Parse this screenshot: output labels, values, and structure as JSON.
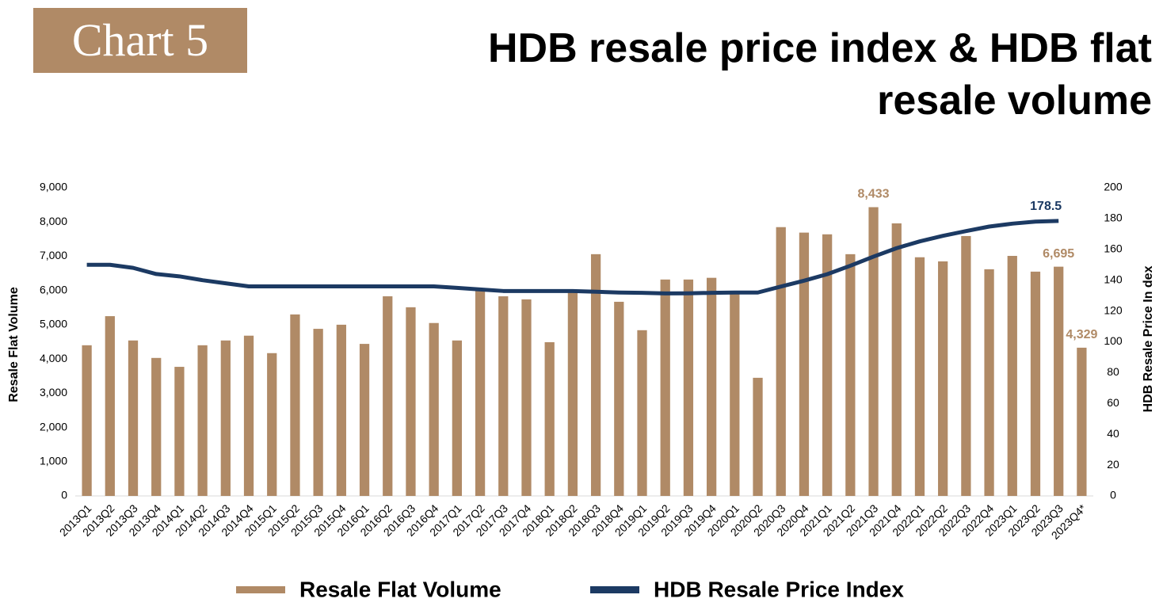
{
  "chart_data": {
    "type": "bar_line",
    "badge": "Chart 5",
    "title": "HDB resale price index & HDB flat resale volume",
    "y_label": "Resale Flat Volume",
    "y2_label": "HDB Resale Price In dex",
    "categories": [
      "2013Q1",
      "2013Q2",
      "2013Q3",
      "2013Q4",
      "2014Q1",
      "2014Q2",
      "2014Q3",
      "2014Q4",
      "2015Q1",
      "2015Q2",
      "2015Q3",
      "2015Q4",
      "2016Q1",
      "2016Q2",
      "2016Q3",
      "2016Q4",
      "2017Q1",
      "2017Q2",
      "2017Q3",
      "2017Q4",
      "2018Q1",
      "2018Q2",
      "2018Q3",
      "2018Q4",
      "2019Q1",
      "2019Q2",
      "2019Q3",
      "2019Q4",
      "2020Q1",
      "2020Q2",
      "2020Q3",
      "2020Q4",
      "2021Q1",
      "2021Q2",
      "2021Q3",
      "2021Q4",
      "2022Q1",
      "2022Q2",
      "2022Q3",
      "2022Q4",
      "2023Q1",
      "2023Q2",
      "2023Q3",
      "2023Q4*"
    ],
    "series": [
      {
        "name": "Resale Flat Volume",
        "type": "bar",
        "color": "#b08a66",
        "values": [
          4400,
          5250,
          4540,
          4030,
          3770,
          4400,
          4540,
          4680,
          4170,
          5300,
          4880,
          5000,
          4440,
          5830,
          5510,
          5050,
          4540,
          6020,
          5830,
          5740,
          4490,
          5950,
          7060,
          5670,
          4840,
          6320,
          6320,
          6370,
          5930,
          3450,
          7850,
          7690,
          7640,
          7060,
          8433,
          7960,
          6970,
          6850,
          7590,
          6620,
          7010,
          6550,
          6695,
          4329
        ],
        "value_labels": [
          null,
          null,
          null,
          null,
          null,
          null,
          null,
          null,
          null,
          null,
          null,
          null,
          null,
          null,
          null,
          null,
          null,
          null,
          null,
          null,
          null,
          null,
          null,
          null,
          null,
          null,
          null,
          null,
          null,
          null,
          null,
          null,
          null,
          null,
          "8,433",
          null,
          null,
          null,
          null,
          null,
          null,
          null,
          "6,695",
          "4,329"
        ]
      },
      {
        "name": "HDB Resale Price Index",
        "type": "line",
        "axis": "y2",
        "color": "#1c3a63",
        "values": [
          150,
          150,
          148,
          144,
          142.5,
          140,
          138,
          136,
          136,
          136,
          136,
          136,
          136,
          136,
          136,
          136,
          135,
          134,
          133,
          133,
          133,
          133,
          132.5,
          132,
          131.8,
          131.4,
          131.5,
          131.8,
          132,
          132,
          135.9,
          139.7,
          143.9,
          149.4,
          155.3,
          160.8,
          165.2,
          168.8,
          171.9,
          174.8,
          176.7,
          178,
          178.5,
          null
        ],
        "label_index": 42
      }
    ],
    "ylim": [
      0,
      9000
    ],
    "yticks": [
      0,
      {
        "value": 1000,
        "label": "1,000"
      },
      {
        "value": 2000,
        "label": "2,000"
      },
      {
        "value": 3000,
        "label": "3,000"
      },
      {
        "value": 4000,
        "label": "4,000"
      },
      {
        "value": 5000,
        "label": "5,000"
      },
      {
        "value": 6000,
        "label": "6,000"
      },
      {
        "value": 7000,
        "label": "7,000"
      },
      {
        "value": 8000,
        "label": "8,000"
      },
      {
        "value": 9000,
        "label": "9,000"
      }
    ],
    "y2lim": [
      0,
      200
    ],
    "y2ticks": [
      0,
      20,
      40,
      60,
      80,
      100,
      120,
      140,
      160,
      180,
      200
    ],
    "grid": false,
    "legend": "bottom"
  }
}
